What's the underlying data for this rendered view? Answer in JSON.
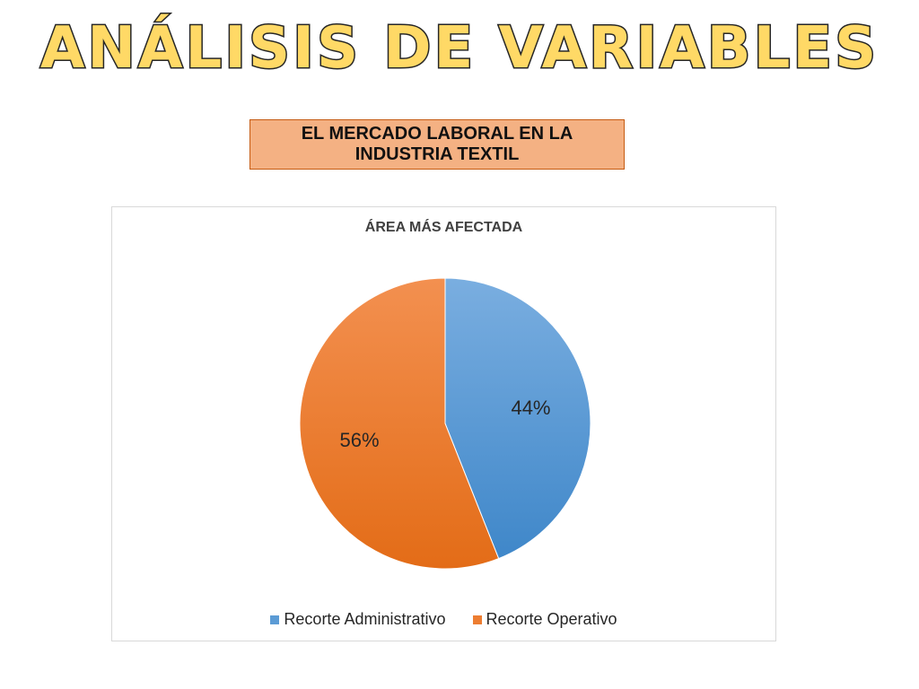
{
  "slide": {
    "title": "ANÁLISIS DE VARIABLES",
    "subtitle": "EL MERCADO LABORAL EN LA INDUSTRIA TEXTIL"
  },
  "chart_data": {
    "type": "pie",
    "title": "ÁREA MÁS AFECTADA",
    "categories": [
      "Recorte Administrativo",
      "Recorte Operativo"
    ],
    "values": [
      44,
      56
    ],
    "labels": [
      "44%",
      "56%"
    ],
    "colors": [
      "#5b9bd5",
      "#ed7d31"
    ],
    "legend": "bottom"
  }
}
